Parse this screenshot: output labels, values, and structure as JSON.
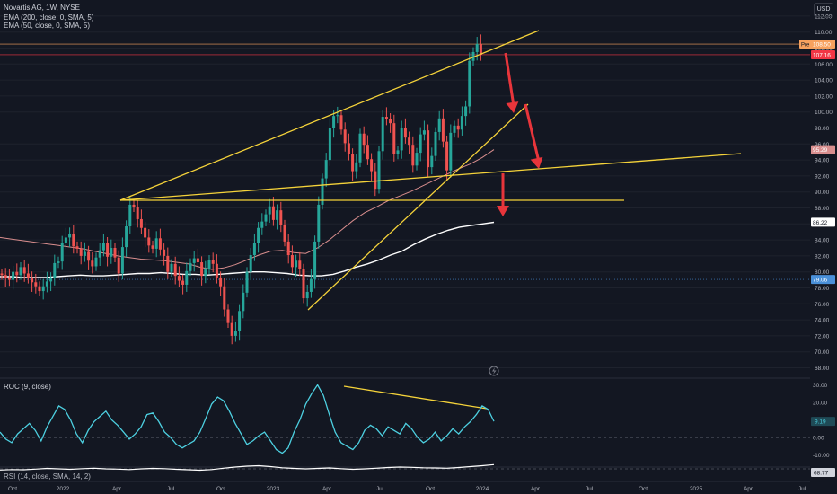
{
  "header": {
    "symbol_line": "Novartis AG, 1W, NYSE",
    "ema200_label": "EMA (200, close, 0, SMA, 5)",
    "ema50_label": "EMA (50, close, 0, SMA, 5)",
    "roc_label": "ROC (9, close)",
    "rsi_label": "RSI (14, close, SMA, 14, 2)",
    "currency": "USD"
  },
  "colors": {
    "background": "#131722",
    "bull": "#26a69a",
    "bear": "#ef5350",
    "trendline": "#f5d33a",
    "ema200": "#ffffff",
    "ema50": "#d98e8e",
    "roc_line": "#4dd0e1",
    "arrow": "#e8353b",
    "price_label_orange": "#f7a15e",
    "price_label_red": "#f23645",
    "grid": "#1e222d"
  },
  "price_axis": {
    "ticks": [
      "112.00",
      "110.00",
      "108.00",
      "106.00",
      "104.00",
      "102.00",
      "100.00",
      "98.00",
      "96.00",
      "94.00",
      "92.00",
      "90.00",
      "88.00",
      "86.00",
      "84.00",
      "82.00",
      "80.00",
      "78.00",
      "76.00",
      "74.00",
      "72.00",
      "70.00",
      "68.00"
    ],
    "tags": [
      {
        "text": "108.50",
        "value": 108.5,
        "color": "#f7a15e",
        "prefix": "Pre"
      },
      {
        "text": "107.16",
        "value": 107.16,
        "color": "#f23645",
        "prefix": ""
      },
      {
        "text": "95.29",
        "value": 95.29,
        "color": "#d98e8e",
        "prefix": ""
      },
      {
        "text": "86.22",
        "value": 86.22,
        "color": "#ffffff",
        "prefix": ""
      },
      {
        "text": "79.06",
        "value": 79.06,
        "color": "#4a90d9",
        "prefix": ""
      }
    ]
  },
  "roc_axis": {
    "ticks": [
      "30.00",
      "20.00",
      "10.00",
      "0.00",
      "-10.00"
    ],
    "tag": {
      "text": "9.19",
      "value": 9.19
    }
  },
  "rsi_axis": {
    "tag": {
      "text": "68.77",
      "value": 68.77
    }
  },
  "time_axis": {
    "labels": [
      "Oct",
      "2022",
      "Apr",
      "Jul",
      "Oct",
      "2023",
      "Apr",
      "Jul",
      "Oct",
      "2024",
      "Apr",
      "Jul",
      "Oct",
      "2025",
      "Apr",
      "Jul"
    ]
  },
  "chart_data": {
    "type": "candlestick",
    "title": "Novartis AG, 1W, NYSE",
    "x_range": [
      "2021-09",
      "2025-08"
    ],
    "ylim": [
      67,
      112
    ],
    "closes": [
      79.6,
      79.2,
      79.0,
      80.0,
      79.6,
      80.6,
      79.8,
      79.3,
      78.7,
      78.2,
      77.6,
      78.2,
      78.8,
      79.2,
      81.1,
      81.3,
      83.6,
      84.3,
      84.8,
      83.2,
      82.9,
      82.0,
      82.5,
      81.4,
      80.7,
      81.8,
      82.7,
      83.6,
      81.9,
      83.0,
      81.8,
      79.8,
      83.1,
      85.7,
      88.4,
      88.1,
      86.6,
      85.5,
      84.3,
      83.3,
      82.9,
      84.2,
      82.8,
      82.0,
      80.0,
      81.0,
      79.5,
      78.9,
      78.4,
      80.1,
      81.1,
      81.7,
      81.2,
      79.5,
      80.3,
      81.5,
      81.0,
      79.3,
      78.2,
      75.3,
      73.6,
      72.0,
      72.6,
      75.1,
      77.4,
      80.0,
      82.1,
      83.6,
      85.5,
      86.3,
      87.2,
      88.2,
      86.5,
      87.7,
      85.9,
      83.8,
      82.1,
      80.6,
      81.4,
      80.4,
      76.7,
      77.5,
      79.1,
      83.8,
      88.4,
      91.7,
      94.0,
      98.0,
      99.5,
      99.6,
      97.8,
      96.1,
      94.7,
      92.6,
      93.7,
      97.3,
      95.9,
      94.1,
      92.6,
      90.4,
      95.1,
      99.4,
      99.1,
      98.6,
      94.7,
      95.2,
      98.0,
      96.8,
      95.9,
      93.3,
      94.9,
      97.2,
      97.7,
      93.1,
      94.5,
      97.5,
      99.2,
      96.3,
      92.7,
      97.4,
      98.3,
      97.8,
      99.5,
      100.7,
      106.4,
      107.5,
      108.5,
      107.16
    ],
    "ema200": [
      79.4,
      79.4,
      79.3,
      79.3,
      79.3,
      79.4,
      79.5,
      79.6,
      79.5,
      79.5,
      79.6,
      79.7,
      79.8,
      79.8,
      79.9,
      79.8,
      79.7,
      79.7,
      79.6,
      79.7,
      79.8,
      79.9,
      80.0,
      80.0,
      79.9,
      79.8,
      79.6,
      79.5,
      79.5,
      79.7,
      80.1,
      80.6,
      81.0,
      81.5,
      82.1,
      82.6,
      83.4,
      84.1,
      84.7,
      85.2,
      85.6,
      85.8,
      86.0,
      86.2
    ],
    "ema50": [
      84.3,
      84.1,
      83.9,
      83.7,
      83.5,
      83.3,
      83.1,
      82.9,
      82.6,
      82.3,
      82.0,
      81.8,
      81.6,
      81.5,
      81.4,
      81.2,
      81.0,
      80.6,
      80.3,
      80.5,
      80.9,
      81.5,
      82.1,
      82.6,
      82.7,
      82.4,
      82.3,
      83.0,
      84.0,
      85.2,
      86.4,
      87.4,
      88.1,
      88.9,
      89.5,
      90.1,
      90.8,
      91.5,
      92.2,
      92.9,
      93.5,
      94.3,
      95.29
    ],
    "roc": [
      3,
      -1,
      -3,
      2,
      5,
      8,
      4,
      -2,
      6,
      12,
      18,
      16,
      10,
      2,
      -3,
      4,
      9,
      12,
      15,
      10,
      7,
      3,
      -1,
      2,
      6,
      13,
      14,
      9,
      3,
      0,
      -4,
      -6,
      -4,
      -2,
      3,
      11,
      19,
      23,
      21,
      15,
      8,
      2,
      -4,
      -2,
      1,
      3,
      -2,
      -7,
      -9,
      -6,
      3,
      10,
      19,
      25,
      30,
      24,
      13,
      3,
      -3,
      -5,
      -7,
      -3,
      4,
      7,
      5,
      1,
      6,
      4,
      2,
      8,
      5,
      0,
      -3,
      -1,
      3,
      -2,
      1,
      5,
      2,
      6,
      9,
      13,
      18,
      16,
      9.19
    ],
    "rsi": [
      45,
      47,
      46,
      49,
      52,
      50,
      48,
      51,
      53,
      50,
      49,
      47,
      50,
      52,
      51,
      48,
      46,
      44,
      47,
      53,
      58,
      62,
      64,
      60,
      55,
      52,
      50,
      52,
      54,
      51,
      48,
      50,
      53,
      56,
      58,
      57,
      55,
      54,
      53,
      56,
      60,
      64,
      68.77
    ],
    "annotations": [
      "trendline",
      "trendline",
      "trendline",
      "trendline",
      "trendline",
      "roc-divergence-line",
      "down-arrow",
      "down-arrow",
      "down-arrow"
    ]
  }
}
